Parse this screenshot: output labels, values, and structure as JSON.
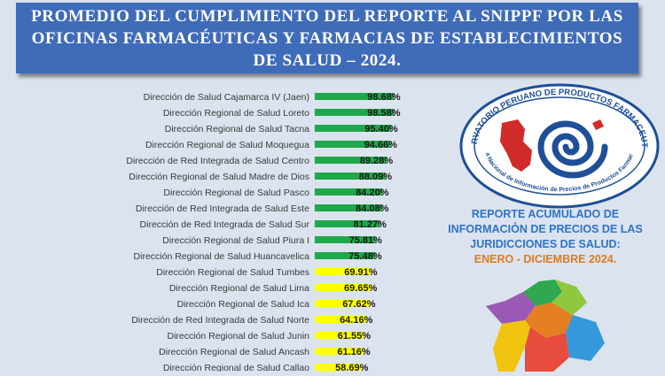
{
  "title": "PROMEDIO DEL CUMPLIMIENTO DEL REPORTE AL SNIPPF POR LAS OFICINAS FARMACÉUTICAS Y FARMACIAS DE ESTABLECIMIENTOS DE SALUD – 2024.",
  "logo": {
    "top_text": "OBSERVATORIO PERUANO DE PRODUCTOS FARMACEUTICOS",
    "bottom_text": "Sistema Nacional de Información de Precios de Productos Farmacéuticos",
    "colors": {
      "ring": "#1f4f97",
      "peru": "#d22b2b",
      "swirl": "#1f4f97"
    }
  },
  "report": {
    "line1": "REPORTE ACUMULADO DE",
    "line2": "INFORMACIÒN DE PRECIOS DE LAS",
    "line3": "JURIDICCIONES DE SALUD:",
    "period": "ENERO - DICIEMBRE 2024."
  },
  "chart_data": {
    "type": "bar",
    "orientation": "horizontal",
    "categories": [
      "Dirección de Salud Cajamarca IV (Jaen)",
      "Dirección Regional de Salud Loreto",
      "Dirección Regional de Salud Tacna",
      "Dirección Regional de Salud Moquegua",
      "Dirección de Red Integrada de Salud Centro",
      "Dirección Regional de Salud Madre de Dios",
      "Dirección Regional de Salud Pasco",
      "Dirección de Red Integrada de Salud Este",
      "Dirección de Red Integrada de Salud Sur",
      "Dirección Regional de Salud Piura I",
      "Dirección Regional de Salud Huancavelica",
      "Dirección Regional de Salud Tumbes",
      "Dirección Regional de Salud Lima",
      "Dirección Regional de Salud Ica",
      "Dirección de Red Integrada de Salud Norte",
      "Dirección Regional de Salud Junin",
      "Dirección Regional de Salud Ancash",
      "Dirección Regional de Salud Callao"
    ],
    "values": [
      98.68,
      98.58,
      95.4,
      94.66,
      89.28,
      88.09,
      84.2,
      84.08,
      81.27,
      75.81,
      75.48,
      69.91,
      69.65,
      67.62,
      64.16,
      61.55,
      61.16,
      58.69
    ],
    "value_labels": [
      "98.68%",
      "98.58%",
      "95.40%",
      "94.66%",
      "89.28%",
      "88.09%",
      "84.20%",
      "84.08%",
      "81.27%",
      "75.81%",
      "75.48%",
      "69.91%",
      "69.65%",
      "67.62%",
      "64.16%",
      "61.55%",
      "61.16%",
      "58.69%"
    ],
    "xlim": [
      0,
      100
    ],
    "green_threshold": 70,
    "colors": {
      "high": "#1fa84a",
      "low": "#ffff00"
    },
    "grid": false,
    "legend": "none"
  }
}
